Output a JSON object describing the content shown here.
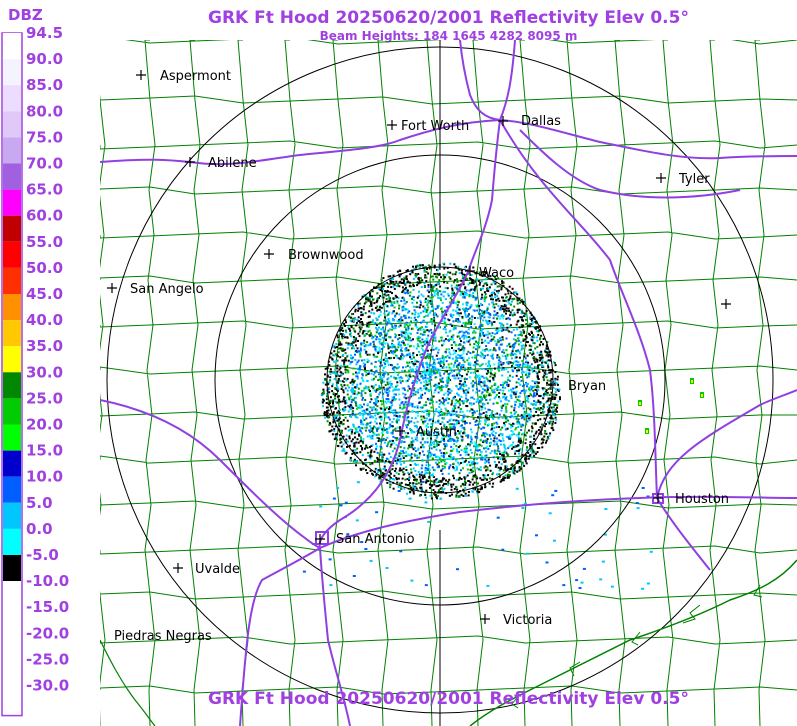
{
  "header": {
    "title": "GRK Ft Hood 20250620/2001 Reflectivity Elev 0.5°",
    "subtitle": "Beam Heights: 184 1645 4282 8095 m",
    "footer_title": "GRK Ft Hood 20250620/2001 Reflectivity Elev 0.5°"
  },
  "legend": {
    "unit": "DBZ",
    "entries": [
      {
        "label": "94.5",
        "color": "#ffffff"
      },
      {
        "label": "90.0",
        "color": "#f4f4ff"
      },
      {
        "label": "85.0",
        "color": "#ecdcff"
      },
      {
        "label": "80.0",
        "color": "#e0c8f8"
      },
      {
        "label": "75.0",
        "color": "#c8a8f0"
      },
      {
        "label": "70.0",
        "color": "#a060e0"
      },
      {
        "label": "65.0",
        "color": "#ff00ff"
      },
      {
        "label": "60.0",
        "color": "#c00000"
      },
      {
        "label": "55.0",
        "color": "#ff0000"
      },
      {
        "label": "50.0",
        "color": "#ff3000"
      },
      {
        "label": "45.0",
        "color": "#ff9000"
      },
      {
        "label": "40.0",
        "color": "#ffc800"
      },
      {
        "label": "35.0",
        "color": "#ffff00"
      },
      {
        "label": "30.0",
        "color": "#008800"
      },
      {
        "label": "25.0",
        "color": "#00cc00"
      },
      {
        "label": "20.0",
        "color": "#00ff00"
      },
      {
        "label": "15.0",
        "color": "#0000cc"
      },
      {
        "label": "10.0",
        "color": "#0060ff"
      },
      {
        "label": "5.0",
        "color": "#00c8ff"
      },
      {
        "label": "0.0",
        "color": "#00ffff"
      },
      {
        "label": "-5.0",
        "color": "#000000"
      },
      {
        "label": "-10.0",
        "color": "#ffffff"
      },
      {
        "label": "-15.0",
        "color": "#ffffff"
      },
      {
        "label": "-20.0",
        "color": "#ffffff"
      },
      {
        "label": "-25.0",
        "color": "#ffffff"
      },
      {
        "label": "-30.0",
        "color": "#ffffff"
      }
    ]
  },
  "cities": [
    {
      "name": "Aspermont"
    },
    {
      "name": "Fort Worth"
    },
    {
      "name": "Dallas"
    },
    {
      "name": "Abilene"
    },
    {
      "name": "Tyler"
    },
    {
      "name": "Brownwood"
    },
    {
      "name": "Waco"
    },
    {
      "name": "San Angelo"
    },
    {
      "name": "Bryan"
    },
    {
      "name": "Austin"
    },
    {
      "name": "Houston"
    },
    {
      "name": "San Antonio"
    },
    {
      "name": "Uvalde"
    },
    {
      "name": "Victoria"
    },
    {
      "name": "Piedras Negras"
    },
    {
      "name": ""
    }
  ],
  "colors": {
    "title": "#a040e0",
    "county_lines": "#008000",
    "highways": "#9040e0",
    "range_rings": "#000000"
  }
}
